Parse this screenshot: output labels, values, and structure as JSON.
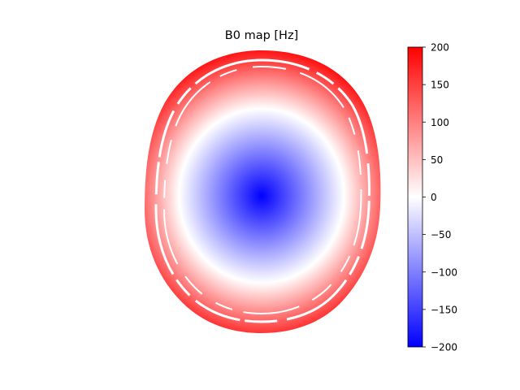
{
  "chart_data": {
    "type": "heatmap",
    "title": "B0 map [Hz]",
    "xlabel": "",
    "ylabel": "",
    "axes_visible": false,
    "grid": false,
    "description_of_field": "axial head slice; masked region outside the head is blank",
    "colormap": "bwr",
    "colorbar": {
      "label": "",
      "vmin": -200,
      "vmax": 200,
      "ticks": [
        200,
        150,
        100,
        50,
        0,
        -50,
        -100,
        -150,
        -200
      ],
      "tick_labels": [
        "200",
        "150",
        "100",
        "50",
        "0",
        "−50",
        "−100",
        "−150",
        "−200"
      ],
      "placement": "right"
    },
    "field_model": {
      "min_value_center": -200,
      "max_value_rim": 200,
      "zero_contour": "ellipse around the center"
    },
    "colors": {
      "low": "#0000ff",
      "mid": "#ffffff",
      "high": "#ff0000"
    }
  }
}
